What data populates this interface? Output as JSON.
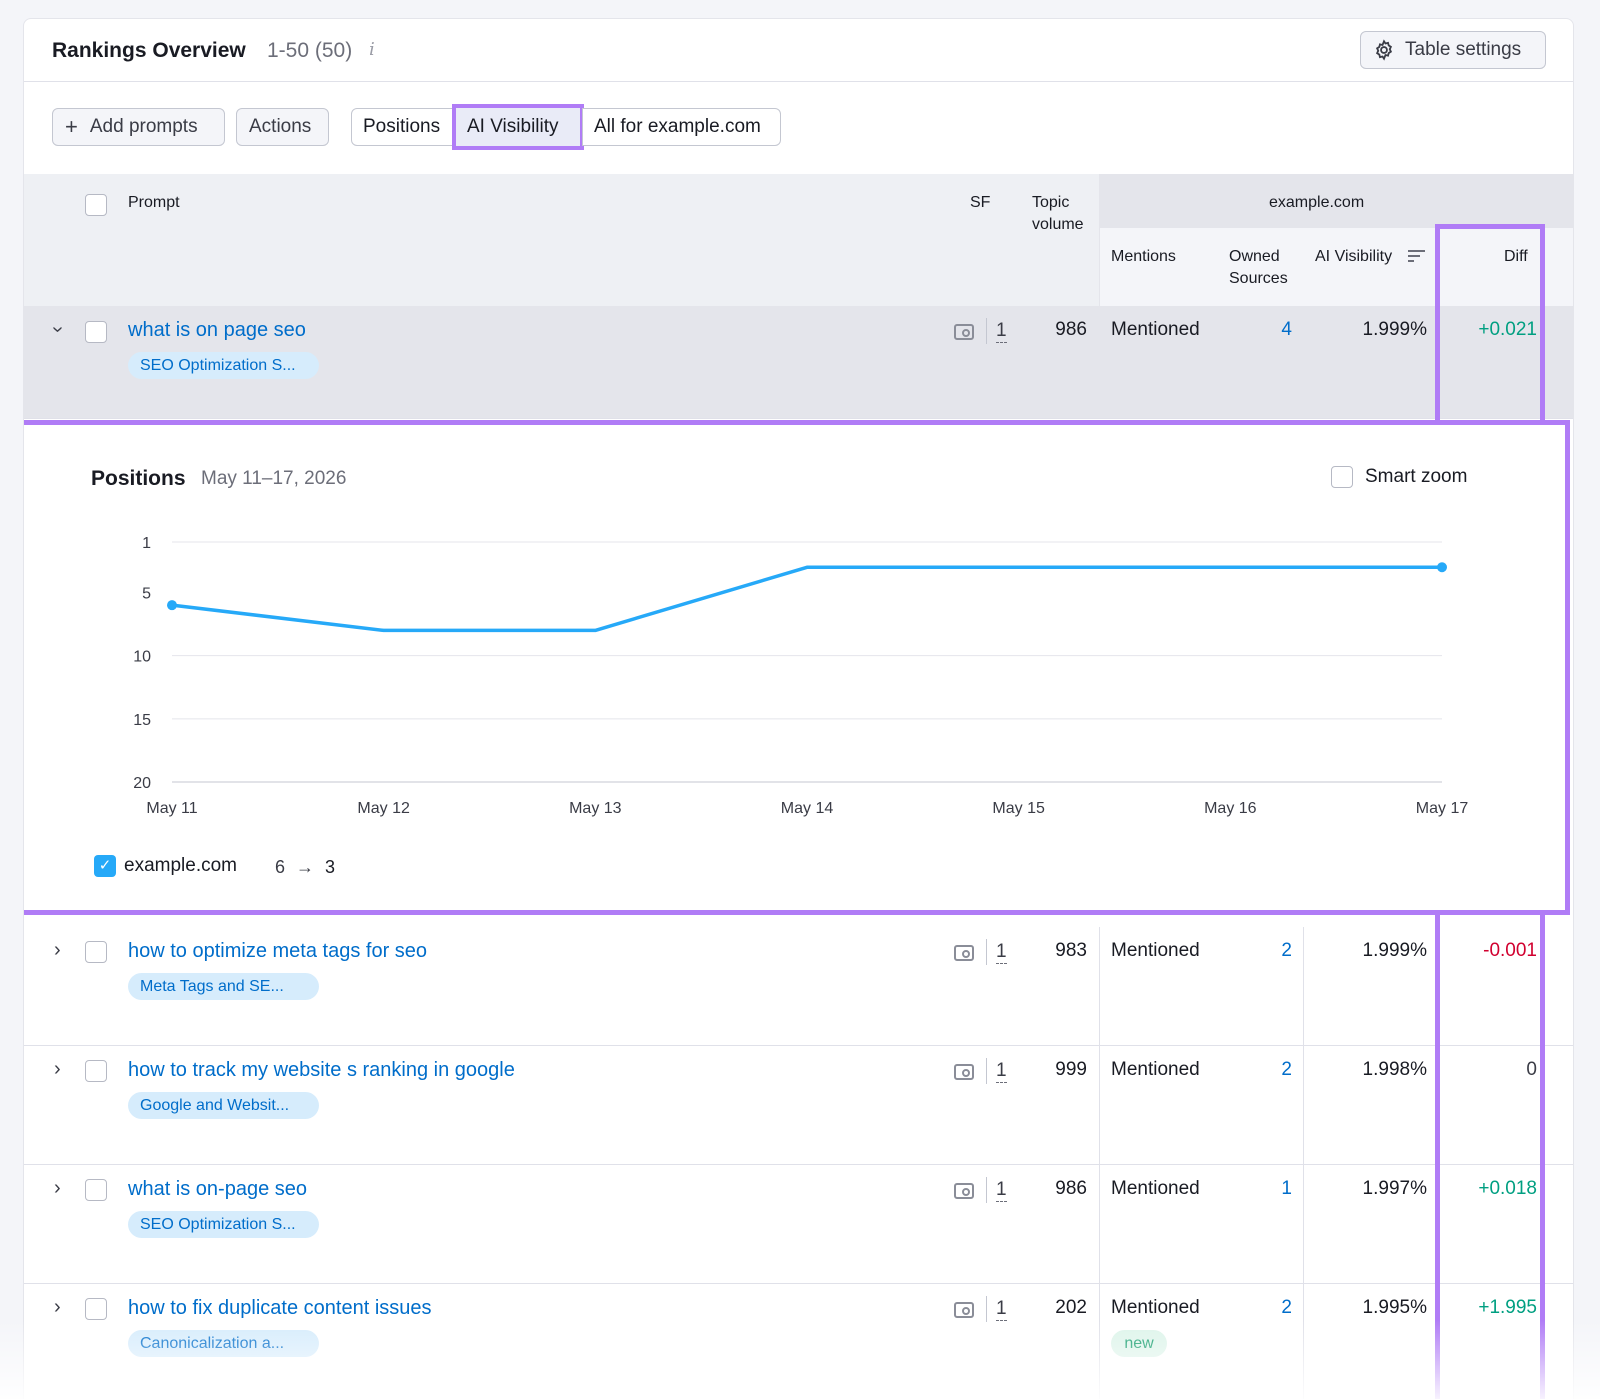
{
  "header": {
    "title": "Rankings Overview",
    "range": "1-50 (50)",
    "info_icon": "i",
    "table_settings_label": "Table settings"
  },
  "toolbar": {
    "add_prompts_label": "Add prompts",
    "actions_label": "Actions",
    "segments": [
      "Positions",
      "AI Visibility",
      "All for example.com"
    ],
    "active_segment": "AI Visibility"
  },
  "table": {
    "columns": {
      "prompt": "Prompt",
      "sf": "SF",
      "topic_volume_line1": "Topic",
      "topic_volume_line2": "volume",
      "group": "example.com",
      "mentions": "Mentions",
      "owned_line1": "Owned",
      "owned_line2": "Sources",
      "ai_visibility": "AI Visibility",
      "diff": "Diff"
    },
    "rows": [
      {
        "prompt": "what is on page seo",
        "tag": "SEO Optimization S...",
        "sf": "1",
        "volume": "986",
        "mentions": "Mentioned",
        "owned": "4",
        "visibility": "1.999%",
        "diff": "+0.021",
        "diff_color": "#009f81",
        "expanded": true
      },
      {
        "prompt": "how to optimize meta tags for seo",
        "tag": "Meta Tags and SE...",
        "sf": "1",
        "volume": "983",
        "mentions": "Mentioned",
        "owned": "2",
        "visibility": "1.999%",
        "diff": "-0.001",
        "diff_color": "#d1002f"
      },
      {
        "prompt": "how to track my website s ranking in google",
        "tag": "Google and Websit...",
        "sf": "1",
        "volume": "999",
        "mentions": "Mentioned",
        "owned": "2",
        "visibility": "1.998%",
        "diff": "0",
        "diff_color": "#3a3c46"
      },
      {
        "prompt": "what is on-page seo",
        "tag": "SEO Optimization S...",
        "sf": "1",
        "volume": "986",
        "mentions": "Mentioned",
        "owned": "1",
        "visibility": "1.997%",
        "diff": "+0.018",
        "diff_color": "#009f81"
      },
      {
        "prompt": "how to fix duplicate content issues",
        "tag": "Canonicalization a...",
        "sf": "1",
        "volume": "202",
        "mentions": "Mentioned",
        "mentions_badge": "new",
        "owned": "2",
        "visibility": "1.995%",
        "diff": "+1.995",
        "diff_color": "#009f81"
      }
    ]
  },
  "panel": {
    "title": "Positions",
    "date_range": "May 11–17, 2026",
    "smart_zoom_label": "Smart zoom",
    "legend_label": "example.com",
    "legend_from": "6",
    "legend_arrow": "→",
    "legend_to": "3"
  },
  "chart_data": {
    "type": "line",
    "x": [
      "May 11",
      "May 12",
      "May 13",
      "May 14",
      "May 15",
      "May 16",
      "May 17"
    ],
    "series": [
      {
        "name": "example.com",
        "values": [
          6,
          8,
          8,
          3,
          3,
          3,
          3
        ],
        "color": "#26a9f8"
      }
    ],
    "yticks": [
      1,
      5,
      10,
      15,
      20
    ],
    "ylim": [
      20,
      1
    ],
    "y_inverted": true,
    "grid": true
  },
  "colors": {
    "accent": "#b07cf6",
    "link": "#006dca",
    "line": "#26a9f8",
    "positive": "#009f81",
    "negative": "#d1002f"
  }
}
